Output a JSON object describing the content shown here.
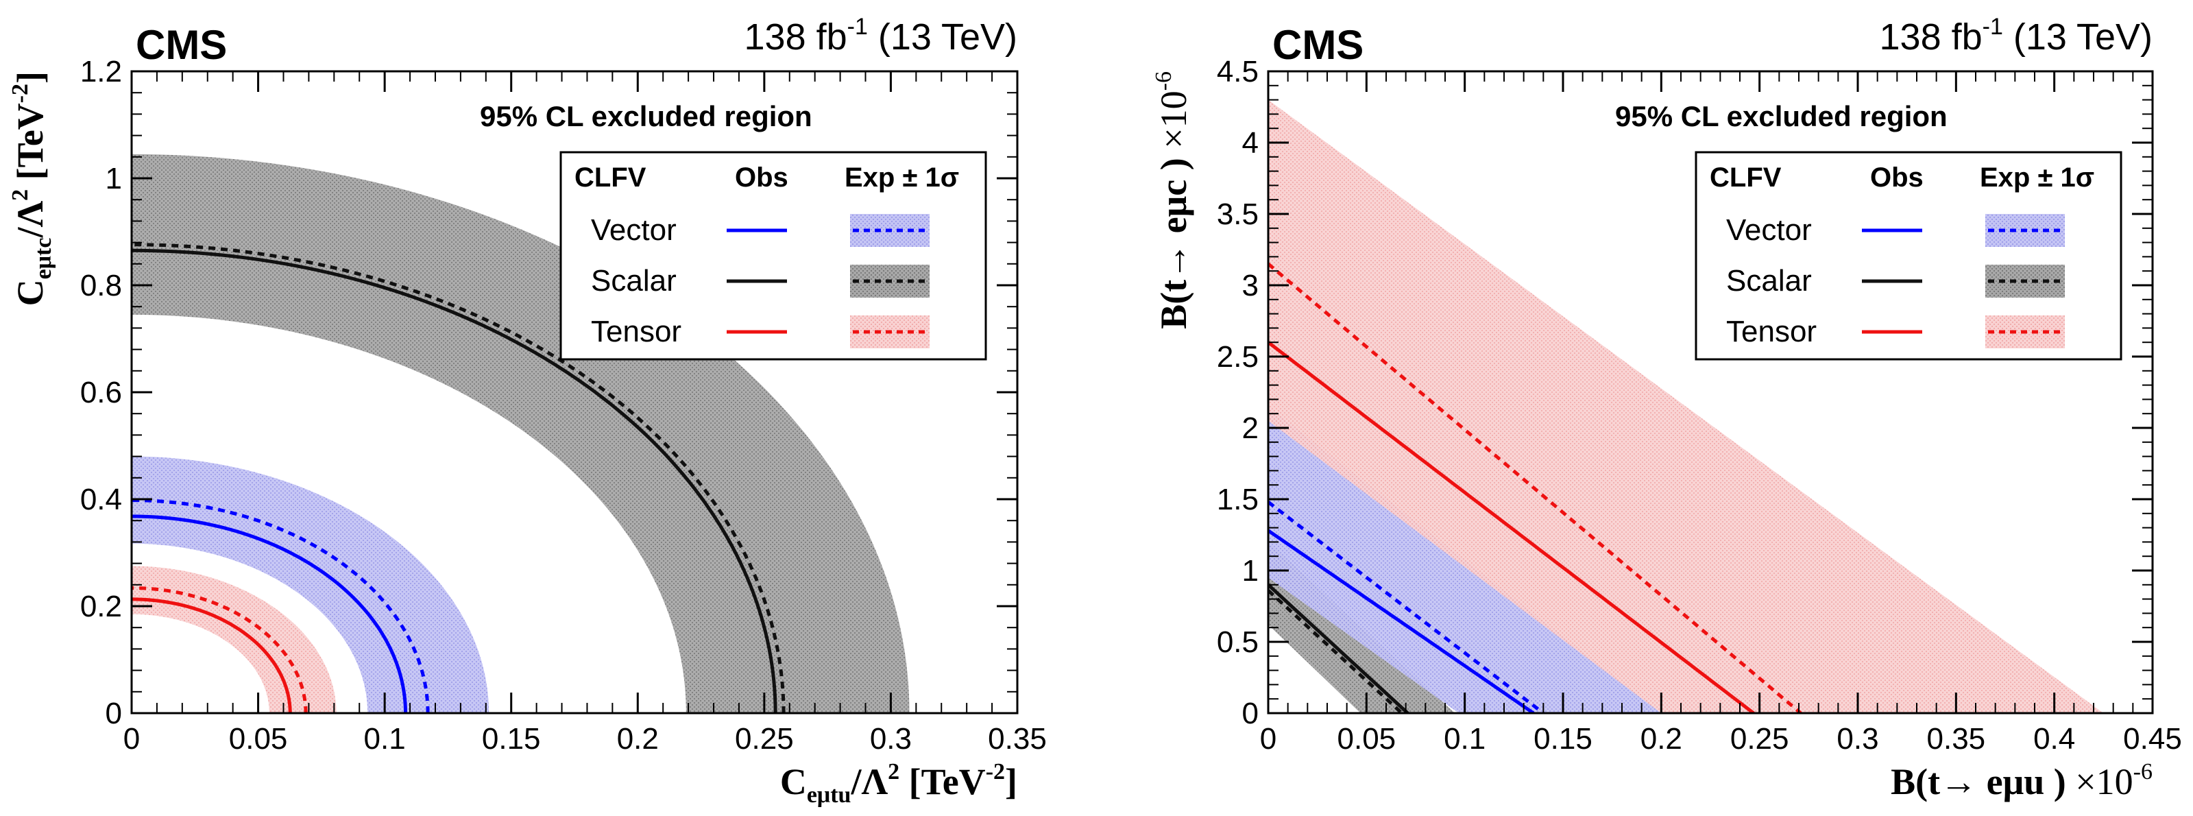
{
  "chart_data": [
    {
      "type": "contour",
      "experiment": "CMS",
      "lumi_label": "138 fb",
      "lumi_exp": "-1",
      "energy_label": " (13 TeV)",
      "region_label": "95% CL excluded region",
      "legend_header": {
        "clfv": "CLFV",
        "obs": "Obs",
        "exp": "Exp ± 1σ"
      },
      "xlabel": {
        "main": "C",
        "sub": "eμtu",
        "rest": "/Λ",
        "sup1": "2",
        "unit": " [TeV",
        "sup2": "-2",
        "close": "]"
      },
      "ylabel": {
        "main": "C",
        "sub": "eμtc",
        "rest": "/Λ",
        "sup1": "2",
        "unit": " [TeV",
        "sup2": "-2",
        "close": "]"
      },
      "xlim": [
        0,
        0.35
      ],
      "ylim": [
        0,
        1.2
      ],
      "xticks": [
        "0",
        "0.05",
        "0.1",
        "0.15",
        "0.2",
        "0.25",
        "0.3",
        "0.35"
      ],
      "yticks": [
        "0",
        "0.2",
        "0.4",
        "0.6",
        "0.8",
        "1",
        "1.2"
      ],
      "series": [
        {
          "name": "Vector",
          "color": "#0000ff",
          "band_color": "#b3b3f2",
          "obs": 0.368,
          "exp": 0.398,
          "exp_lo": 0.317,
          "exp_hi": 0.48
        },
        {
          "name": "Scalar",
          "color": "#111111",
          "band_color": "#9a9a9a",
          "obs": 0.865,
          "exp": 0.876,
          "exp_lo": 0.745,
          "exp_hi": 1.045
        },
        {
          "name": "Tensor",
          "color": "#ee1111",
          "band_color": "#f7c8c8",
          "obs": 0.213,
          "exp": 0.234,
          "exp_lo": 0.185,
          "exp_hi": 0.275
        }
      ],
      "x_to_y_ratio": 3.4
    },
    {
      "type": "line",
      "experiment": "CMS",
      "lumi_label": "138 fb",
      "lumi_exp": "-1",
      "energy_label": " (13 TeV)",
      "region_label": "95% CL excluded region",
      "legend_header": {
        "clfv": "CLFV",
        "obs": "Obs",
        "exp": "Exp ± 1σ"
      },
      "xlabel": {
        "main": "B(t→ eμu )",
        "times": " ×10",
        "sup": "-6"
      },
      "ylabel": {
        "main": "B(t→ eμc )",
        "times": " ×10",
        "sup": "-6"
      },
      "xlim": [
        0,
        0.45
      ],
      "ylim": [
        0,
        4.5
      ],
      "xticks": [
        "0",
        "0.05",
        "0.1",
        "0.15",
        "0.2",
        "0.25",
        "0.3",
        "0.35",
        "0.4",
        "0.45"
      ],
      "yticks": [
        "0",
        "0.5",
        "1",
        "1.5",
        "2",
        "2.5",
        "3",
        "3.5",
        "4",
        "4.5"
      ],
      "series": [
        {
          "name": "Vector",
          "color": "#0000ff",
          "band_color": "#b3b3f2",
          "obs": [
            0.135,
            1.28
          ],
          "exp": [
            0.14,
            1.48
          ],
          "exp_lo": [
            0.097,
            0.95
          ],
          "exp_hi": [
            0.2,
            2.15
          ]
        },
        {
          "name": "Scalar",
          "color": "#111111",
          "band_color": "#9a9a9a",
          "obs": [
            0.071,
            0.9
          ],
          "exp": [
            0.068,
            0.86
          ],
          "exp_lo": [
            0.047,
            0.62
          ],
          "exp_hi": [
            0.095,
            1.2
          ]
        },
        {
          "name": "Tensor",
          "color": "#ee1111",
          "band_color": "#f7c8c8",
          "obs": [
            0.247,
            2.6
          ],
          "exp": [
            0.271,
            3.15
          ],
          "exp_lo": [
            0.2,
            2.05
          ],
          "exp_hi": [
            0.425,
            4.3
          ]
        }
      ]
    }
  ]
}
